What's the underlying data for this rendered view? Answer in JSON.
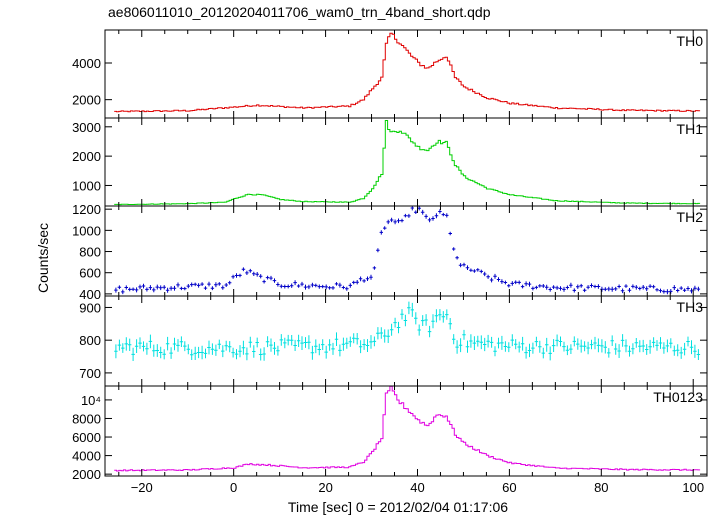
{
  "chart_data": {
    "type": "line",
    "title": "ae806011010_20120204011706_wam0_trn_4band_short.qdp",
    "xlabel": "Time [sec] 0 = 2012/02/04 01:17:06",
    "ylabel": "Counts/sec",
    "xlim": [
      -28,
      103
    ],
    "x_ticks": [
      "−20",
      "0",
      "20",
      "40",
      "60",
      "80",
      "100"
    ],
    "x_tick_values": [
      -20,
      0,
      20,
      40,
      60,
      80,
      100
    ],
    "panels": [
      {
        "name": "TH0",
        "color": "#e00000",
        "ylim": [
          1000,
          5800
        ],
        "y_ticks": [
          "2000",
          "4000"
        ],
        "y_tick_values": [
          2000,
          4000
        ],
        "error_bars": false,
        "profile": [
          [
            -26,
            1350
          ],
          [
            -10,
            1400
          ],
          [
            0,
            1600
          ],
          [
            5,
            1700
          ],
          [
            15,
            1550
          ],
          [
            25,
            1650
          ],
          [
            28,
            2000
          ],
          [
            30,
            2600
          ],
          [
            32,
            3200
          ],
          [
            33,
            5000
          ],
          [
            34,
            5600
          ],
          [
            36,
            5100
          ],
          [
            38,
            4500
          ],
          [
            40,
            4000
          ],
          [
            42,
            3700
          ],
          [
            44,
            4100
          ],
          [
            46,
            4400
          ],
          [
            48,
            3200
          ],
          [
            50,
            2700
          ],
          [
            55,
            2100
          ],
          [
            60,
            1800
          ],
          [
            70,
            1550
          ],
          [
            85,
            1420
          ],
          [
            101,
            1380
          ]
        ]
      },
      {
        "name": "TH1",
        "color": "#00d000",
        "ylim": [
          300,
          3300
        ],
        "y_ticks": [
          "1000",
          "2000",
          "3000"
        ],
        "y_tick_values": [
          1000,
          2000,
          3000
        ],
        "error_bars": false,
        "profile": [
          [
            -26,
            350
          ],
          [
            -10,
            380
          ],
          [
            -2,
            430
          ],
          [
            0,
            550
          ],
          [
            3,
            700
          ],
          [
            6,
            680
          ],
          [
            10,
            520
          ],
          [
            15,
            450
          ],
          [
            25,
            430
          ],
          [
            28,
            560
          ],
          [
            30,
            900
          ],
          [
            32,
            1400
          ],
          [
            33,
            3150
          ],
          [
            34,
            2800
          ],
          [
            36,
            2900
          ],
          [
            38,
            2600
          ],
          [
            40,
            2300
          ],
          [
            42,
            2200
          ],
          [
            44,
            2500
          ],
          [
            46,
            2450
          ],
          [
            48,
            1700
          ],
          [
            50,
            1300
          ],
          [
            55,
            900
          ],
          [
            60,
            680
          ],
          [
            70,
            480
          ],
          [
            85,
            400
          ],
          [
            101,
            380
          ]
        ]
      },
      {
        "name": "TH2",
        "color": "#0000c8",
        "ylim": [
          380,
          1230
        ],
        "y_ticks": [
          "400",
          "600",
          "800",
          "1000",
          "1200"
        ],
        "y_tick_values": [
          400,
          600,
          800,
          1000,
          1200
        ],
        "error_bars": true,
        "profile": [
          [
            -26,
            440
          ],
          [
            -10,
            470
          ],
          [
            -2,
            480
          ],
          [
            0,
            560
          ],
          [
            2,
            620
          ],
          [
            5,
            560
          ],
          [
            10,
            490
          ],
          [
            20,
            470
          ],
          [
            25,
            470
          ],
          [
            28,
            550
          ],
          [
            30,
            560
          ],
          [
            32,
            1020
          ],
          [
            34,
            1100
          ],
          [
            36,
            1050
          ],
          [
            38,
            1180
          ],
          [
            40,
            1200
          ],
          [
            42,
            1080
          ],
          [
            44,
            1160
          ],
          [
            46,
            1130
          ],
          [
            47,
            900
          ],
          [
            49,
            660
          ],
          [
            52,
            620
          ],
          [
            55,
            560
          ],
          [
            60,
            490
          ],
          [
            70,
            460
          ],
          [
            85,
            450
          ],
          [
            101,
            440
          ]
        ]
      },
      {
        "name": "TH3",
        "color": "#00e0e0",
        "ylim": [
          660,
          935
        ],
        "y_ticks": [
          "700",
          "800",
          "900"
        ],
        "y_tick_values": [
          700,
          800,
          900
        ],
        "error_bars": true,
        "profile": [
          [
            -26,
            778
          ],
          [
            0,
            776
          ],
          [
            20,
            782
          ],
          [
            30,
            790
          ],
          [
            33,
            822
          ],
          [
            36,
            866
          ],
          [
            38,
            880
          ],
          [
            40,
            850
          ],
          [
            42,
            840
          ],
          [
            44,
            872
          ],
          [
            46,
            880
          ],
          [
            48,
            800
          ],
          [
            52,
            790
          ],
          [
            60,
            782
          ],
          [
            80,
            780
          ],
          [
            101,
            778
          ]
        ]
      },
      {
        "name": "TH0123",
        "color": "#e000e0",
        "ylim": [
          1800,
          11500
        ],
        "y_ticks": [
          "2000",
          "4000",
          "6000",
          "8000",
          "10⁴"
        ],
        "y_tick_values": [
          2000,
          4000,
          6000,
          8000,
          10000
        ],
        "error_bars": false,
        "profile": [
          [
            -26,
            2400
          ],
          [
            -10,
            2450
          ],
          [
            0,
            2700
          ],
          [
            3,
            3100
          ],
          [
            7,
            3000
          ],
          [
            15,
            2700
          ],
          [
            25,
            2750
          ],
          [
            28,
            3300
          ],
          [
            30,
            4400
          ],
          [
            32,
            5900
          ],
          [
            33,
            10500
          ],
          [
            34,
            11200
          ],
          [
            36,
            9700
          ],
          [
            38,
            8800
          ],
          [
            40,
            7800
          ],
          [
            42,
            7200
          ],
          [
            44,
            8400
          ],
          [
            46,
            8300
          ],
          [
            48,
            6300
          ],
          [
            50,
            5300
          ],
          [
            55,
            4000
          ],
          [
            60,
            3200
          ],
          [
            70,
            2650
          ],
          [
            85,
            2500
          ],
          [
            101,
            2450
          ]
        ]
      }
    ]
  }
}
